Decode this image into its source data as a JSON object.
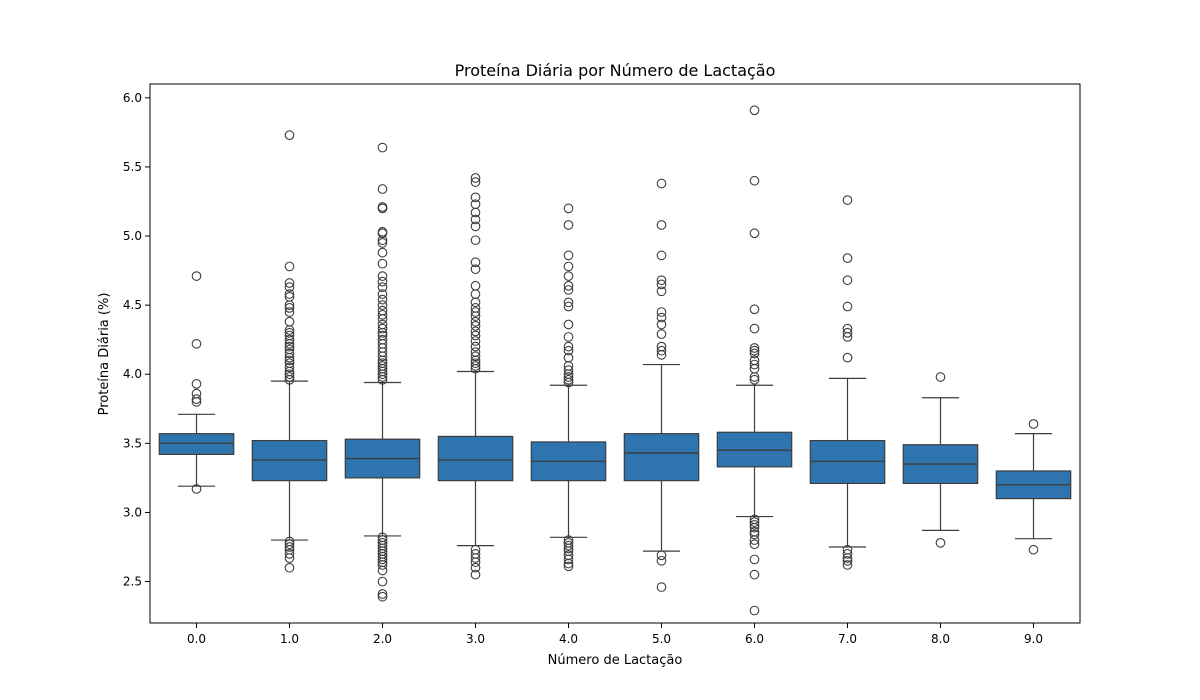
{
  "chart_data": {
    "type": "box",
    "title": "Proteína Diária por Número de Lactação",
    "xlabel": "Número de Lactação",
    "ylabel": "Proteína Diária (%)",
    "ylim": [
      2.2,
      6.1
    ],
    "yticks": [
      2.5,
      3.0,
      3.5,
      4.0,
      4.5,
      5.0,
      5.5,
      6.0
    ],
    "ytick_labels": [
      "2.5",
      "3.0",
      "3.5",
      "4.0",
      "4.5",
      "5.0",
      "5.5",
      "6.0"
    ],
    "color": "#2e75b0",
    "categories": [
      "0.0",
      "1.0",
      "2.0",
      "3.0",
      "4.0",
      "5.0",
      "6.0",
      "7.0",
      "8.0",
      "9.0"
    ],
    "boxes": [
      {
        "q1": 3.42,
        "median": 3.5,
        "q3": 3.57,
        "whisker_low": 3.19,
        "whisker_high": 3.71,
        "outliers": [
          3.17,
          3.8,
          3.82,
          3.86,
          3.93,
          4.22,
          4.71
        ]
      },
      {
        "q1": 3.23,
        "median": 3.38,
        "q3": 3.52,
        "whisker_low": 2.8,
        "whisker_high": 3.95,
        "outliers": [
          2.6,
          2.67,
          2.7,
          2.73,
          2.75,
          2.77,
          2.79,
          3.96,
          3.98,
          4.0,
          4.02,
          4.05,
          4.08,
          4.1,
          4.12,
          4.15,
          4.18,
          4.2,
          4.22,
          4.25,
          4.28,
          4.3,
          4.32,
          4.38,
          4.45,
          4.48,
          4.5,
          4.56,
          4.58,
          4.63,
          4.66,
          4.78,
          5.73
        ]
      },
      {
        "q1": 3.25,
        "median": 3.39,
        "q3": 3.53,
        "whisker_low": 2.83,
        "whisker_high": 3.94,
        "outliers": [
          2.39,
          2.41,
          2.5,
          2.58,
          2.62,
          2.64,
          2.66,
          2.68,
          2.7,
          2.72,
          2.74,
          2.76,
          2.78,
          2.8,
          2.82,
          3.96,
          3.98,
          4.0,
          4.02,
          4.04,
          4.06,
          4.08,
          4.1,
          4.13,
          4.16,
          4.19,
          4.22,
          4.25,
          4.28,
          4.3,
          4.33,
          4.36,
          4.4,
          4.43,
          4.46,
          4.5,
          4.54,
          4.58,
          4.63,
          4.67,
          4.71,
          4.8,
          4.88,
          4.95,
          4.97,
          5.02,
          5.03,
          5.2,
          5.21,
          5.34,
          5.64
        ]
      },
      {
        "q1": 3.23,
        "median": 3.38,
        "q3": 3.55,
        "whisker_low": 2.76,
        "whisker_high": 4.02,
        "outliers": [
          2.55,
          2.6,
          2.64,
          2.67,
          2.7,
          2.73,
          4.04,
          4.06,
          4.08,
          4.1,
          4.13,
          4.16,
          4.2,
          4.24,
          4.28,
          4.31,
          4.35,
          4.38,
          4.42,
          4.45,
          4.48,
          4.52,
          4.58,
          4.64,
          4.76,
          4.81,
          4.97,
          5.07,
          5.12,
          5.17,
          5.23,
          5.28,
          5.39,
          5.42
        ]
      },
      {
        "q1": 3.23,
        "median": 3.37,
        "q3": 3.51,
        "whisker_low": 2.82,
        "whisker_high": 3.92,
        "outliers": [
          2.61,
          2.63,
          2.66,
          2.69,
          2.72,
          2.74,
          2.76,
          2.78,
          2.8,
          3.94,
          3.96,
          3.98,
          4.0,
          4.03,
          4.06,
          4.12,
          4.17,
          4.2,
          4.27,
          4.36,
          4.49,
          4.52,
          4.61,
          4.64,
          4.71,
          4.78,
          4.86,
          5.08,
          5.2
        ]
      },
      {
        "q1": 3.23,
        "median": 3.43,
        "q3": 3.57,
        "whisker_low": 2.72,
        "whisker_high": 4.07,
        "outliers": [
          2.46,
          2.65,
          2.69,
          4.14,
          4.17,
          4.2,
          4.29,
          4.36,
          4.41,
          4.45,
          4.6,
          4.65,
          4.68,
          4.86,
          5.08,
          5.38
        ]
      },
      {
        "q1": 3.33,
        "median": 3.45,
        "q3": 3.58,
        "whisker_low": 2.97,
        "whisker_high": 3.92,
        "outliers": [
          2.29,
          2.55,
          2.66,
          2.77,
          2.8,
          2.84,
          2.86,
          2.89,
          2.91,
          2.93,
          2.95,
          3.96,
          3.98,
          4.04,
          4.07,
          4.1,
          4.15,
          4.17,
          4.19,
          4.33,
          4.47,
          5.02,
          5.4,
          5.91
        ]
      },
      {
        "q1": 3.21,
        "median": 3.37,
        "q3": 3.52,
        "whisker_low": 2.75,
        "whisker_high": 3.97,
        "outliers": [
          2.62,
          2.65,
          2.67,
          2.7,
          2.73,
          4.12,
          4.27,
          4.3,
          4.33,
          4.49,
          4.68,
          4.84,
          5.26
        ]
      },
      {
        "q1": 3.21,
        "median": 3.35,
        "q3": 3.49,
        "whisker_low": 2.87,
        "whisker_high": 3.83,
        "outliers": [
          2.78,
          3.98
        ]
      },
      {
        "q1": 3.1,
        "median": 3.2,
        "q3": 3.3,
        "whisker_low": 2.81,
        "whisker_high": 3.57,
        "outliers": [
          2.73,
          3.64
        ]
      }
    ]
  }
}
